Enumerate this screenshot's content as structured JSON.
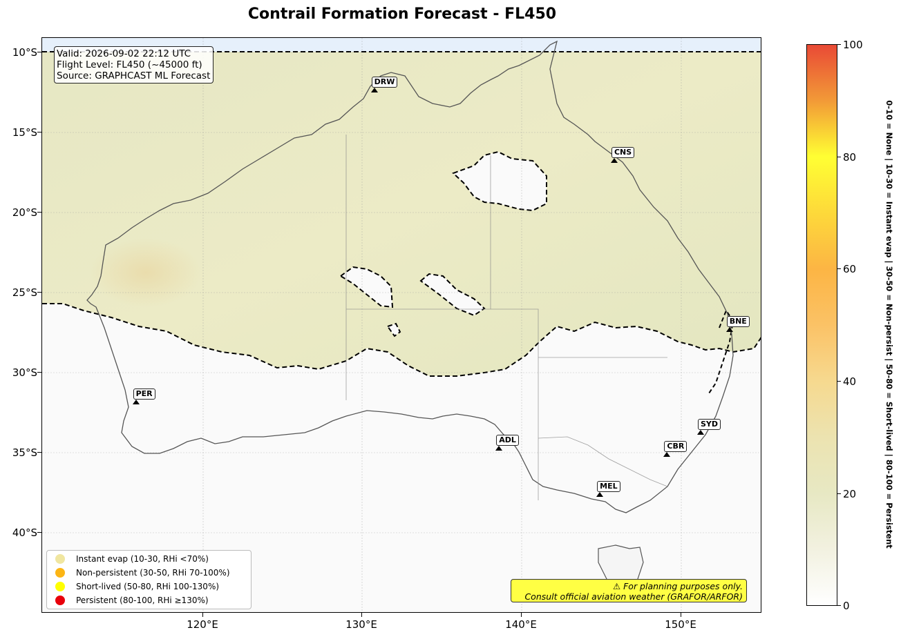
{
  "title": "Contrail Formation Forecast - FL450",
  "info": {
    "valid": "Valid: 2026-09-02 22:12 UTC",
    "flight_level": "Flight Level: FL450 (~45000 ft)",
    "source": "Source: GRAPHCAST ML Forecast"
  },
  "axes": {
    "lat_labels": [
      "10°S",
      "15°S",
      "20°S",
      "25°S",
      "30°S",
      "35°S",
      "40°S"
    ],
    "lon_labels": [
      "120°E",
      "130°E",
      "140°E",
      "150°E"
    ]
  },
  "cities": [
    {
      "code": "DRW",
      "lon": 130.8,
      "lat": -12.5
    },
    {
      "code": "CNS",
      "lon": 145.8,
      "lat": -16.9
    },
    {
      "code": "PER",
      "lon": 115.9,
      "lat": -32.0
    },
    {
      "code": "ADL",
      "lon": 138.6,
      "lat": -34.9
    },
    {
      "code": "SYD",
      "lon": 151.2,
      "lat": -33.9
    },
    {
      "code": "CBR",
      "lon": 149.1,
      "lat": -35.3
    },
    {
      "code": "MEL",
      "lon": 144.9,
      "lat": -37.8
    },
    {
      "code": "BNE",
      "lon": 153.0,
      "lat": -27.5
    }
  ],
  "legend": [
    {
      "label": "Instant evap (10-30, RHi <70%)",
      "color": "#f0e6a0"
    },
    {
      "label": "Non-persistent (30-50, RHi 70-100%)",
      "color": "#fcb514"
    },
    {
      "label": "Short-lived (50-80, RHi 100-130%)",
      "color": "#ffff00"
    },
    {
      "label": "Persistent (80-100, RHi ≥130%)",
      "color": "#e8000b"
    }
  ],
  "warning": {
    "line1": "⚠ For planning purposes only.",
    "line2": "Consult official aviation weather (GRAFOR/ARFOR)"
  },
  "colorbar": {
    "ticks": [
      "0",
      "20",
      "40",
      "60",
      "80",
      "100"
    ],
    "label": "0-10 = None  |  10-30 = Instant evap  |  30-50 = Non-persist  |  50-80 = Short-lived  |  80-100 = Persistent"
  }
}
